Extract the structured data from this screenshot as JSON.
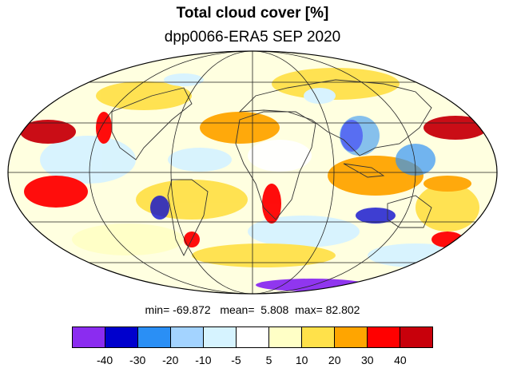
{
  "title": "Total cloud cover [%]",
  "subtitle": "dpp0066-ERA5 SEP 2020",
  "stats": {
    "min_label": "min=",
    "min_value": "-69.872",
    "mean_label": "mean=",
    "mean_value": "5.808",
    "max_label": "max=",
    "max_value": "82.802"
  },
  "projection": "mollweide",
  "graticule": true,
  "colorbar": {
    "colors": [
      "#8b2cf0",
      "#0000cd",
      "#2a8ff5",
      "#a3d3ff",
      "#d6f3ff",
      "#ffffff",
      "#ffffc6",
      "#ffe14a",
      "#ffa500",
      "#ff0000",
      "#c8000b"
    ],
    "tick_labels": [
      "-40",
      "-30",
      "-20",
      "-10",
      "-5",
      "5",
      "10",
      "20",
      "30",
      "40"
    ]
  }
}
